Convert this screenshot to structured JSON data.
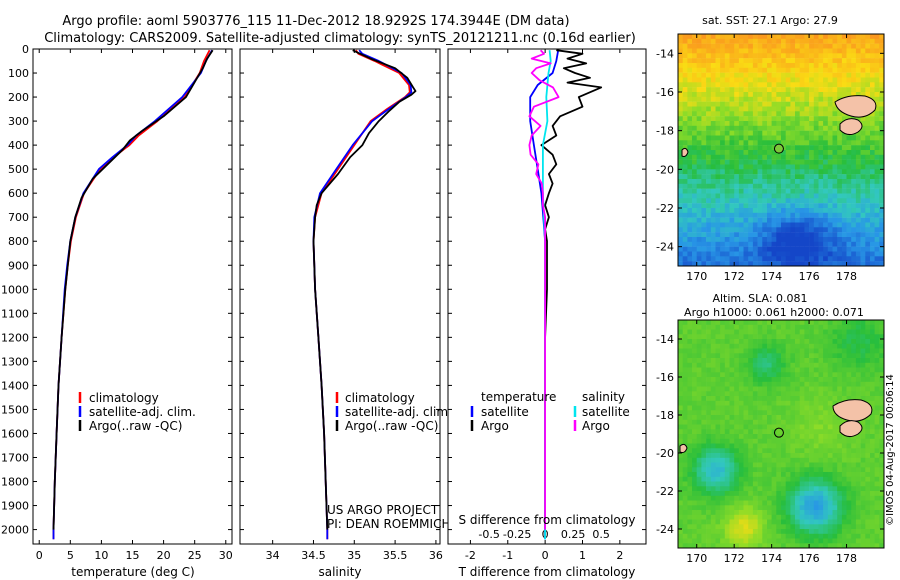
{
  "header": {
    "title_line1": "Argo profile: aoml 5903776_115 11-Dec-2012 18.9292S 174.3944E (DM data)",
    "title_line2": "Climatology: CARS2009. Satellite-adjusted climatology: synTS_20121211.nc (0.16d earlier)"
  },
  "colors": {
    "climatology": "#ff0000",
    "satellite": "#0000ff",
    "argo": "#000000",
    "s_satellite": "#00e5ee",
    "s_argo": "#ff00ff"
  },
  "chart_data": [
    {
      "type": "line",
      "id": "temperature",
      "xlabel": "temperature (deg C)",
      "xlim": [
        -1,
        31
      ],
      "ylim": [
        2060,
        0
      ],
      "xticks": [
        "0",
        "5",
        "10",
        "15",
        "20",
        "25",
        "30"
      ],
      "xtick_values": [
        0,
        5,
        10,
        15,
        20,
        25,
        30
      ],
      "yticks": [
        "0",
        "100",
        "200",
        "300",
        "400",
        "500",
        "600",
        "700",
        "800",
        "900",
        "1000",
        "1100",
        "1200",
        "1300",
        "1400",
        "1500",
        "1600",
        "1700",
        "1800",
        "1900",
        "2000"
      ],
      "ytick_values": [
        0,
        100,
        200,
        300,
        400,
        500,
        600,
        700,
        800,
        900,
        1000,
        1100,
        1200,
        1300,
        1400,
        1500,
        1600,
        1700,
        1800,
        1900,
        2000
      ],
      "legend": [
        "climatology",
        "satellite-adj. clim.",
        "Argo(..raw -QC)"
      ],
      "series": [
        {
          "name": "climatology",
          "depth": [
            5,
            50,
            100,
            200,
            300,
            360,
            400,
            450,
            500,
            600,
            700,
            800,
            900,
            1000,
            1200,
            1400,
            1600,
            1800,
            2000,
            2040
          ],
          "values": [
            27.4,
            26.5,
            25.8,
            23.4,
            19.0,
            16.0,
            14.5,
            12.0,
            9.8,
            7.2,
            5.9,
            5.1,
            4.6,
            4.2,
            3.6,
            3.1,
            2.8,
            2.5,
            2.3,
            2.3
          ]
        },
        {
          "name": "satellite",
          "depth": [
            5,
            50,
            100,
            200,
            300,
            360,
            400,
            450,
            500,
            600,
            700,
            800,
            900,
            1000,
            1200,
            1400,
            1600,
            1800,
            2000,
            2040
          ],
          "values": [
            27.8,
            26.8,
            26.0,
            23.0,
            18.6,
            15.6,
            14.2,
            11.8,
            9.6,
            7.1,
            5.8,
            5.0,
            4.5,
            4.1,
            3.6,
            3.1,
            2.8,
            2.5,
            2.3,
            2.3
          ]
        },
        {
          "name": "argo",
          "depth": [
            5,
            40,
            80,
            120,
            200,
            280,
            340,
            380,
            420,
            480,
            540,
            620,
            700,
            800,
            1000,
            1200,
            1400,
            1600,
            1800,
            2000
          ],
          "values": [
            27.9,
            27.0,
            26.3,
            25.4,
            23.6,
            20.0,
            16.6,
            14.6,
            13.4,
            11.0,
            8.6,
            6.8,
            5.8,
            5.0,
            4.2,
            3.6,
            3.1,
            2.8,
            2.5,
            2.3
          ]
        }
      ]
    },
    {
      "type": "line",
      "id": "salinity",
      "xlabel": "salinity",
      "xlim": [
        33.6,
        36.05
      ],
      "ylim": [
        2060,
        0
      ],
      "xticks": [
        "34",
        "34.5",
        "35",
        "35.5",
        "36"
      ],
      "xtick_values": [
        34,
        34.5,
        35,
        35.5,
        36
      ],
      "legend": [
        "climatology",
        "satellite-adj. clim.",
        "Argo(..raw -QC)"
      ],
      "annotation": [
        "US ARGO PROJECT",
        "PI: DEAN ROEMMICH"
      ],
      "series": [
        {
          "name": "climatology",
          "depth": [
            5,
            20,
            50,
            100,
            150,
            180,
            200,
            250,
            300,
            400,
            500,
            600,
            700,
            800,
            1000,
            1200,
            1400,
            1600,
            1800,
            2000,
            2040
          ],
          "values": [
            35.02,
            35.05,
            35.25,
            35.55,
            35.67,
            35.68,
            35.62,
            35.4,
            35.2,
            35.0,
            34.8,
            34.6,
            34.52,
            34.5,
            34.52,
            34.56,
            34.6,
            34.63,
            34.65,
            34.67,
            34.67
          ]
        },
        {
          "name": "satellite",
          "depth": [
            5,
            20,
            50,
            100,
            150,
            180,
            200,
            250,
            300,
            400,
            500,
            600,
            700,
            800,
            1000,
            1200,
            1400,
            1600,
            1800,
            2000,
            2040
          ],
          "values": [
            35.06,
            35.1,
            35.3,
            35.58,
            35.69,
            35.7,
            35.63,
            35.42,
            35.22,
            34.98,
            34.78,
            34.58,
            34.51,
            34.5,
            34.52,
            34.56,
            34.6,
            34.63,
            34.65,
            34.67,
            34.67
          ]
        },
        {
          "name": "argo",
          "depth": [
            5,
            15,
            40,
            80,
            120,
            160,
            175,
            190,
            220,
            260,
            300,
            350,
            400,
            450,
            520,
            600,
            650,
            700,
            800,
            1000,
            1200,
            1400,
            1600,
            1800,
            2000
          ],
          "values": [
            34.98,
            35.04,
            35.2,
            35.5,
            35.65,
            35.72,
            35.75,
            35.7,
            35.55,
            35.42,
            35.3,
            35.18,
            35.1,
            34.95,
            34.8,
            34.6,
            34.54,
            34.52,
            34.5,
            34.52,
            34.56,
            34.6,
            34.63,
            34.65,
            34.67
          ]
        }
      ]
    },
    {
      "type": "line",
      "id": "difference",
      "xlabel": "T difference from climatology",
      "s_label": "S difference from climatology",
      "xlim": [
        -2.6,
        2.7
      ],
      "ylim": [
        2060,
        0
      ],
      "xticks": [
        "-2",
        "-1",
        "0",
        "1",
        "2"
      ],
      "xtick_values": [
        -2,
        -1,
        0,
        1,
        2
      ],
      "s_ticks": [
        "-0.5",
        "-0.25",
        "0",
        "0.25",
        "0.5"
      ],
      "s_tick_values": [
        -0.5,
        -0.25,
        0,
        0.25,
        0.5
      ],
      "s_scale": 3,
      "legend_temperature": {
        "heading": "temperature",
        "items": [
          "satellite",
          "Argo"
        ]
      },
      "legend_salinity": {
        "heading": "salinity",
        "items": [
          "satellite",
          "Argo"
        ]
      },
      "series": [
        {
          "name": "T satellite",
          "depth": [
            5,
            50,
            100,
            150,
            200,
            300,
            400,
            500,
            600,
            700,
            800,
            1000,
            1400,
            2040
          ],
          "values": [
            0.35,
            0.3,
            0.2,
            -0.2,
            -0.4,
            -0.4,
            -0.3,
            -0.2,
            -0.1,
            -0.05,
            0,
            0,
            0,
            0
          ]
        },
        {
          "name": "T argo",
          "depth": [
            5,
            20,
            40,
            60,
            80,
            100,
            120,
            140,
            160,
            200,
            240,
            280,
            320,
            360,
            400,
            440,
            480,
            520,
            560,
            600,
            650,
            700,
            750,
            800,
            900,
            1000,
            1200,
            1400,
            1600,
            2000
          ],
          "values": [
            0.3,
            1.0,
            0.6,
            1.1,
            0.5,
            0.8,
            1.2,
            0.6,
            1.5,
            0.9,
            1.0,
            0.4,
            0.2,
            0.3,
            -0.1,
            0.2,
            0.3,
            0.1,
            0.2,
            0.1,
            0.0,
            0.1,
            0.0,
            0.05,
            0.05,
            0.05,
            0.0,
            0.0,
            0.0,
            0.0
          ]
        },
        {
          "name": "S satellite",
          "depth": [
            5,
            50,
            100,
            200,
            300,
            400,
            500,
            600,
            800,
            1000,
            1400,
            2040
          ],
          "values": [
            0.04,
            0.05,
            0.03,
            0.01,
            0.02,
            -0.02,
            -0.02,
            -0.02,
            0.0,
            0.0,
            0.0,
            0.0
          ]
        },
        {
          "name": "S argo",
          "depth": [
            5,
            20,
            40,
            60,
            80,
            100,
            130,
            160,
            200,
            240,
            280,
            320,
            360,
            400,
            440,
            480,
            520,
            560,
            600,
            650,
            700,
            800,
            1000,
            1400,
            2000
          ],
          "values": [
            -0.04,
            -0.01,
            -0.12,
            0.05,
            -0.08,
            -0.12,
            -0.05,
            0.07,
            0.12,
            -0.1,
            -0.14,
            -0.04,
            -0.12,
            -0.14,
            -0.13,
            -0.06,
            -0.08,
            -0.03,
            -0.02,
            -0.02,
            0.0,
            0.0,
            0.0,
            0.0,
            0.0
          ]
        }
      ]
    },
    {
      "type": "heatmap",
      "id": "sst_map",
      "title": "sat. SST: 27.1  Argo: 27.9",
      "xlim": [
        169,
        180
      ],
      "ylim": [
        -25,
        -13
      ],
      "xticks": [
        "170",
        "172",
        "174",
        "176",
        "178"
      ],
      "xtick_values": [
        170,
        172,
        174,
        176,
        178
      ],
      "yticks": [
        "-14",
        "-16",
        "-18",
        "-20",
        "-22",
        "-24"
      ],
      "ytick_values": [
        -14,
        -16,
        -18,
        -20,
        -22,
        -24
      ],
      "float_lon": 174.39,
      "float_lat": -18.93
    },
    {
      "type": "heatmap",
      "id": "sla_map",
      "title_line1": "Altim. SLA: 0.081",
      "title_line2": "Argo h1000: 0.061 h2000: 0.071",
      "xlim": [
        169,
        180
      ],
      "ylim": [
        -25,
        -13
      ],
      "xticks": [
        "170",
        "172",
        "174",
        "176",
        "178"
      ],
      "xtick_values": [
        170,
        172,
        174,
        176,
        178
      ],
      "yticks": [
        "-14",
        "-16",
        "-18",
        "-20",
        "-22",
        "-24"
      ],
      "ytick_values": [
        -14,
        -16,
        -18,
        -20,
        -22,
        -24
      ],
      "float_lon": 174.39,
      "float_lat": -18.93
    }
  ],
  "footer": {
    "stamp": "©IMOS 04-Aug-2017 00:06:14"
  }
}
